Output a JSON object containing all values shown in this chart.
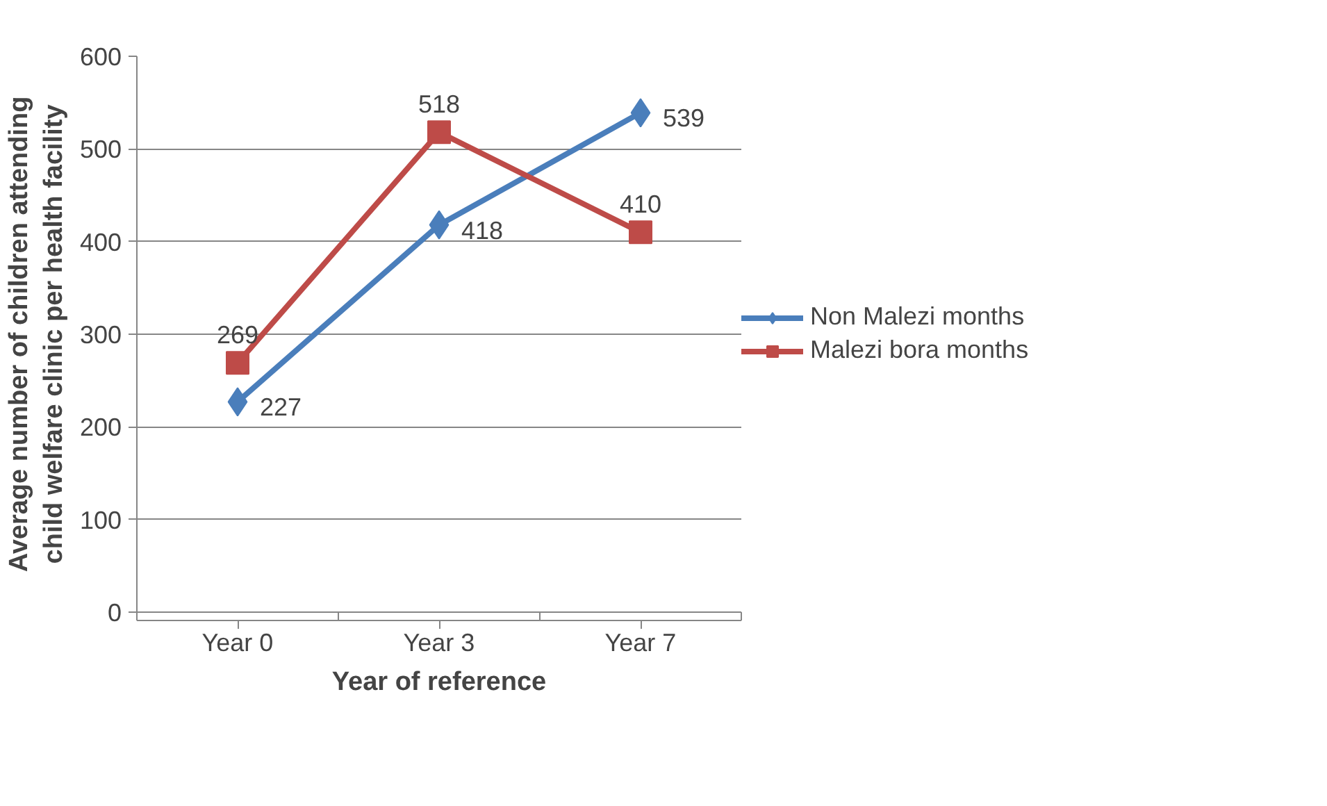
{
  "chart_data": {
    "type": "line",
    "xlabel": "Year of reference",
    "ylabel": "Average number of children attending\nchild welfare clinic per health facility",
    "categories": [
      "Year 0",
      "Year 3",
      "Year 7"
    ],
    "series": [
      {
        "name": "Non Malezi months",
        "color": "#4a7ebb",
        "marker": "diamond",
        "values": [
          227,
          418,
          539
        ]
      },
      {
        "name": "Malezi bora months",
        "color": "#be4b48",
        "marker": "square",
        "values": [
          269,
          518,
          410
        ]
      }
    ],
    "ylim": [
      0,
      600
    ],
    "yticks": [
      0,
      100,
      200,
      300,
      400,
      500,
      600
    ],
    "grid": "y",
    "legend": "right",
    "data_labels": true,
    "line_style": "solid"
  }
}
